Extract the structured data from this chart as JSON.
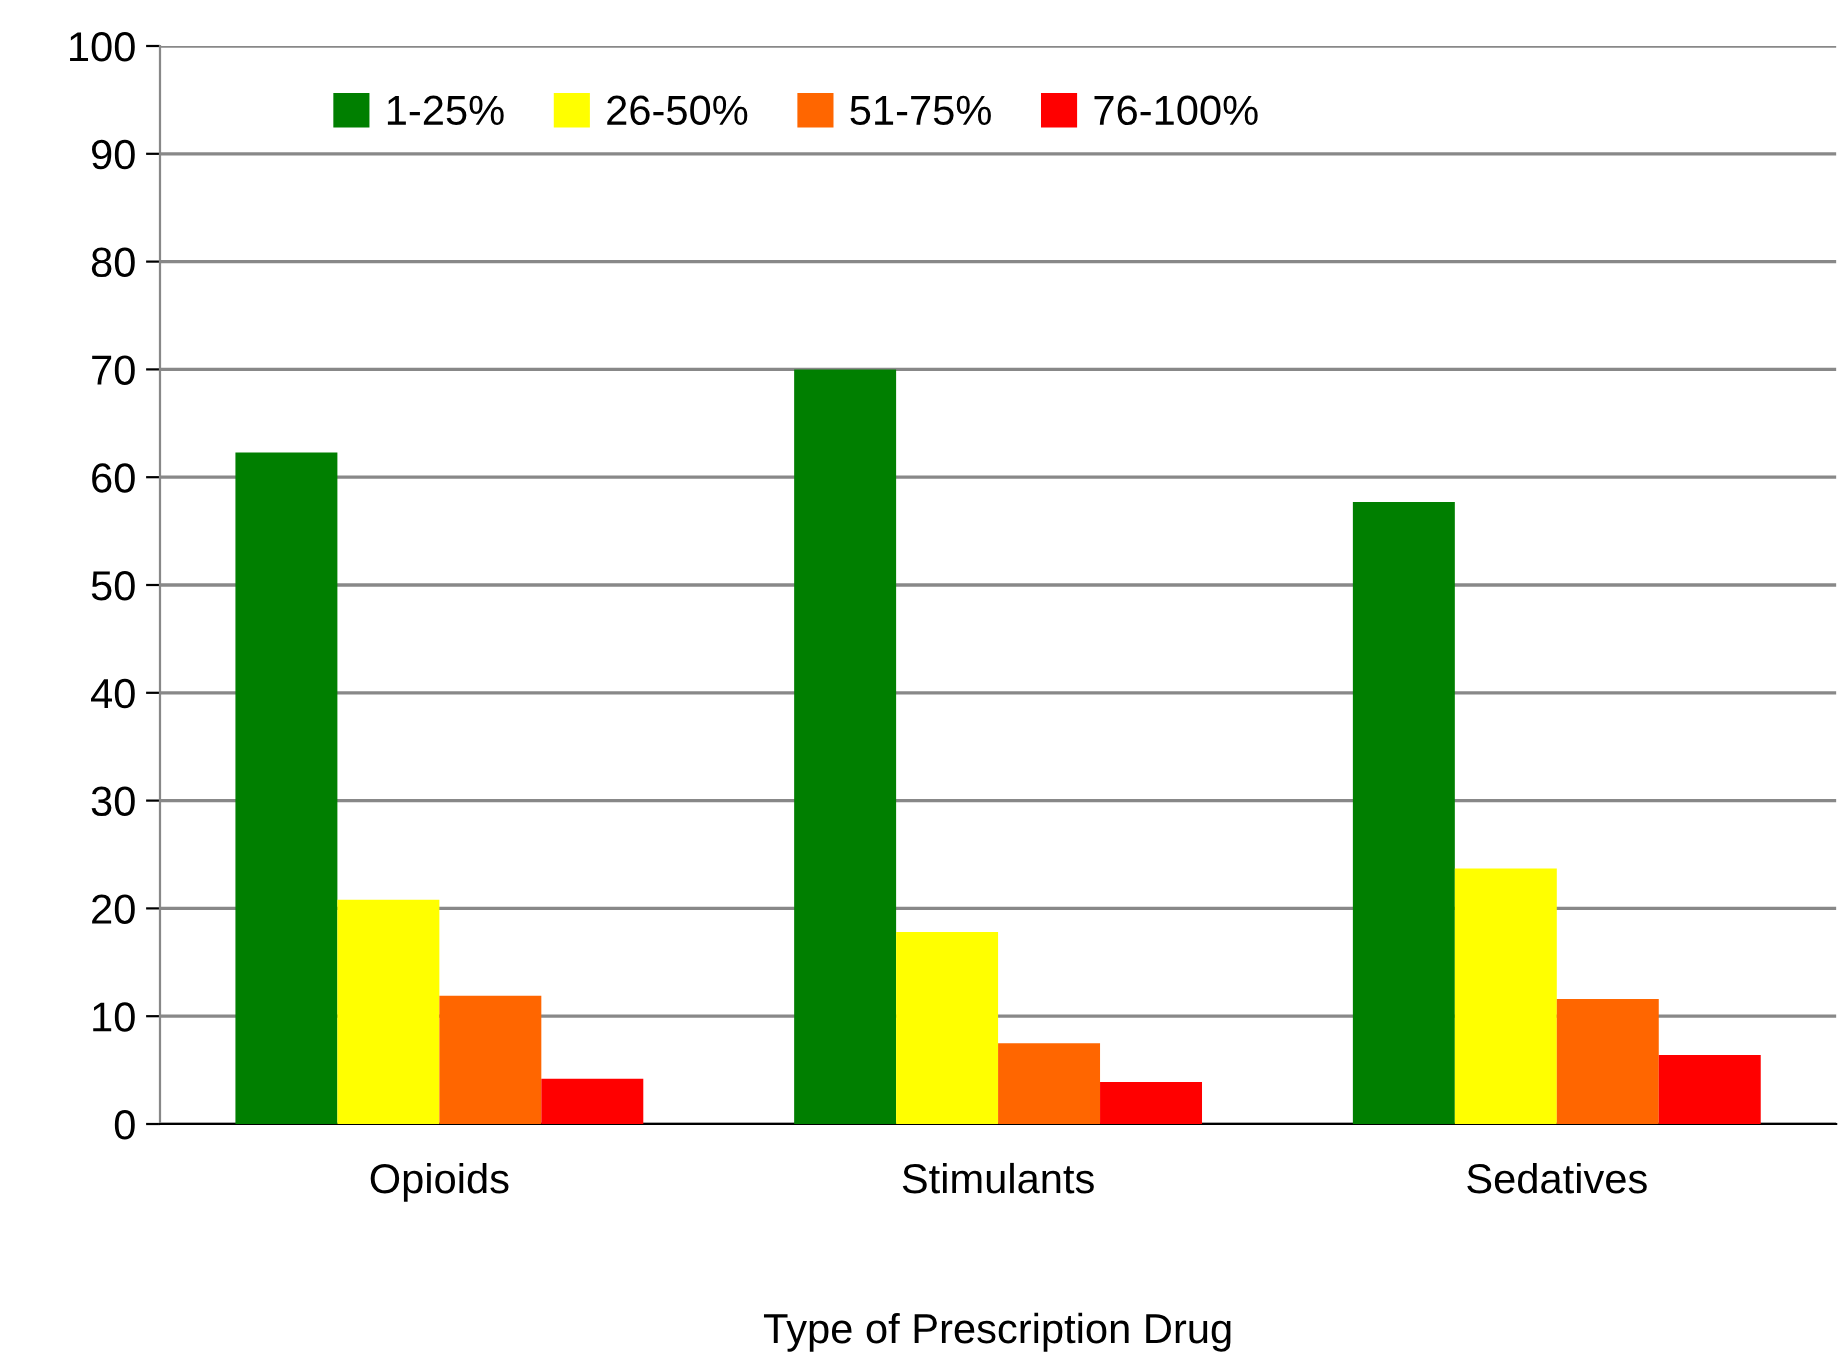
{
  "chart_data": {
    "type": "bar",
    "xlabel": "Type of Prescription Drug",
    "categories": [
      "Opioids",
      "Stimulants",
      "Sedatives"
    ],
    "series": [
      {
        "name": "1-25%",
        "color": "#007f00",
        "values": [
          62.3,
          70.0,
          57.7
        ]
      },
      {
        "name": "26-50%",
        "color": "#ffff00",
        "values": [
          20.8,
          17.8,
          23.7
        ]
      },
      {
        "name": "51-75%",
        "color": "#ff6600",
        "values": [
          11.9,
          7.5,
          11.6
        ]
      },
      {
        "name": "76-100%",
        "color": "#ff0000",
        "values": [
          4.2,
          3.9,
          6.4
        ]
      }
    ],
    "ylim": [
      0,
      100
    ],
    "yticks": [
      0,
      10,
      20,
      30,
      40,
      50,
      60,
      70,
      80,
      90,
      100
    ],
    "grid": "y",
    "legend": "top"
  }
}
